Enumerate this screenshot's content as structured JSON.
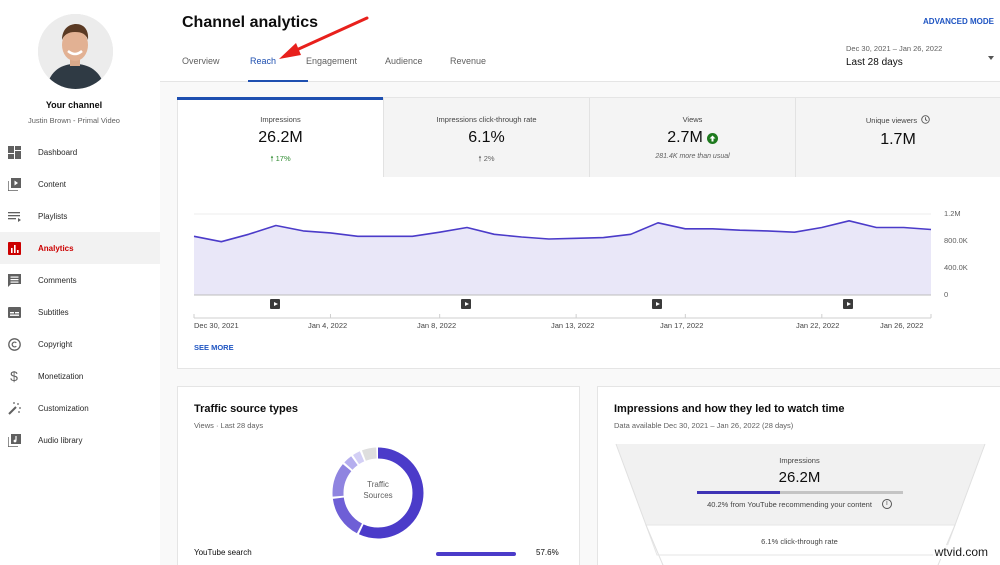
{
  "sidebar": {
    "channel_title": "Your channel",
    "channel_subtitle": "Justin Brown - Primal Video",
    "items": [
      {
        "label": "Dashboard",
        "icon": "dashboard-icon",
        "active": false
      },
      {
        "label": "Content",
        "icon": "content-icon",
        "active": false
      },
      {
        "label": "Playlists",
        "icon": "playlists-icon",
        "active": false
      },
      {
        "label": "Analytics",
        "icon": "analytics-icon",
        "active": true
      },
      {
        "label": "Comments",
        "icon": "comments-icon",
        "active": false
      },
      {
        "label": "Subtitles",
        "icon": "subtitles-icon",
        "active": false
      },
      {
        "label": "Copyright",
        "icon": "copyright-icon",
        "active": false
      },
      {
        "label": "Monetization",
        "icon": "dollar-icon",
        "active": false
      },
      {
        "label": "Customization",
        "icon": "magic-wand-icon",
        "active": false
      },
      {
        "label": "Audio library",
        "icon": "audio-library-icon",
        "active": false
      }
    ]
  },
  "header": {
    "title": "Channel analytics",
    "advanced_mode": "ADVANCED MODE",
    "tabs": [
      {
        "label": "Overview",
        "active": false
      },
      {
        "label": "Reach",
        "active": true
      },
      {
        "label": "Engagement",
        "active": false
      },
      {
        "label": "Audience",
        "active": false
      },
      {
        "label": "Revenue",
        "active": false
      }
    ],
    "date_range": "Dec 30, 2021 – Jan 26, 2022",
    "date_label": "Last 28 days"
  },
  "metrics": [
    {
      "label": "Impressions",
      "value": "26.2M",
      "delta": "17%",
      "delta_color": "#2e8b30",
      "active": true
    },
    {
      "label": "Impressions click-through rate",
      "value": "6.1%",
      "delta": "2%",
      "delta_color": "#606060",
      "active": false
    },
    {
      "label": "Views",
      "value": "2.7M",
      "note": "281.4K more than usual",
      "badge": "up-circle-icon",
      "active": false
    },
    {
      "label": "Unique viewers",
      "value": "1.7M",
      "label_icon": "clock-icon",
      "active": false
    }
  ],
  "chart_data": {
    "type": "area",
    "title": "Impressions",
    "x": [
      "Dec 30, 2021",
      "Dec 31, 2021",
      "Jan 1, 2022",
      "Jan 2, 2022",
      "Jan 3, 2022",
      "Jan 4, 2022",
      "Jan 5, 2022",
      "Jan 6, 2022",
      "Jan 7, 2022",
      "Jan 8, 2022",
      "Jan 9, 2022",
      "Jan 10, 2022",
      "Jan 11, 2022",
      "Jan 12, 2022",
      "Jan 13, 2022",
      "Jan 14, 2022",
      "Jan 15, 2022",
      "Jan 16, 2022",
      "Jan 17, 2022",
      "Jan 18, 2022",
      "Jan 19, 2022",
      "Jan 20, 2022",
      "Jan 21, 2022",
      "Jan 22, 2022",
      "Jan 23, 2022",
      "Jan 24, 2022",
      "Jan 25, 2022",
      "Jan 26, 2022"
    ],
    "values": [
      870000,
      790000,
      900000,
      1030000,
      950000,
      920000,
      870000,
      870000,
      870000,
      930000,
      1000000,
      900000,
      860000,
      830000,
      840000,
      850000,
      900000,
      1070000,
      980000,
      980000,
      960000,
      950000,
      930000,
      1000000,
      1100000,
      1000000,
      1000000,
      970000
    ],
    "x_tick_labels": [
      "Dec 30, 2021",
      "Jan 4, 2022",
      "Jan 8, 2022",
      "Jan 13, 2022",
      "Jan 17, 2022",
      "Jan 22, 2022",
      "Jan 26, 2022"
    ],
    "y_tick_labels": [
      "1.2M",
      "800.0K",
      "400.0K",
      "0"
    ],
    "ylim": [
      0,
      1200000
    ],
    "grid": true,
    "video_markers": [
      "Jan 2, 2022",
      "Jan 9, 2022",
      "Jan 16, 2022",
      "Jan 23, 2022"
    ],
    "line_color": "#4b3bc9",
    "fill_color": "#e9e7f8"
  },
  "chart": {
    "see_more": "SEE MORE"
  },
  "traffic_card": {
    "title": "Traffic source types",
    "subtitle": "Views · Last 28 days",
    "donut_center": [
      "Traffic",
      "Sources"
    ],
    "donut_segments": [
      {
        "pct": 57.6,
        "color": "#4b3bc9"
      },
      {
        "pct": 16,
        "color": "#6e5fd6"
      },
      {
        "pct": 13,
        "color": "#8f84e0"
      },
      {
        "pct": 4,
        "color": "#b5aeee"
      },
      {
        "pct": 3.5,
        "color": "#d3cff5"
      },
      {
        "pct": 5.9,
        "color": "#dedede"
      }
    ],
    "rows": [
      {
        "label": "YouTube search",
        "pct": "57.6%"
      }
    ]
  },
  "impressions_card": {
    "title": "Impressions and how they led to watch time",
    "subtitle": "Data available Dec 30, 2021 – Jan 26, 2022 (28 days)",
    "funnel_label": "Impressions",
    "funnel_value": "26.2M",
    "recommend_note": "40.2% from YouTube recommending your content",
    "recommend_pct": 40.2,
    "ctr_note": "6.1% click-through rate"
  },
  "watermark": "wtvid.com"
}
